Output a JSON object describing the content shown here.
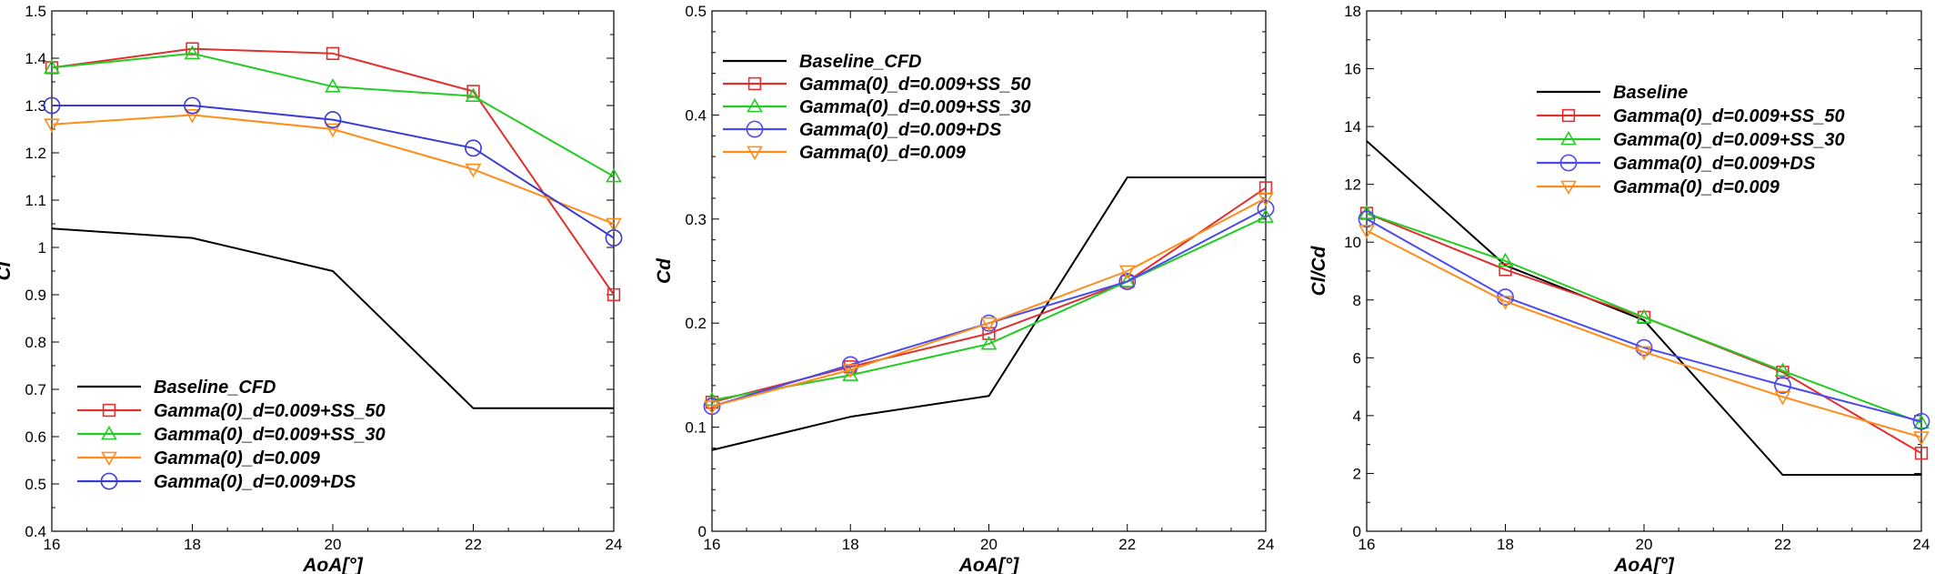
{
  "chart_data": [
    {
      "type": "line",
      "xlabel": "AoA[°]",
      "ylabel": "Cl",
      "xlim": [
        16,
        24
      ],
      "ylim": [
        0.4,
        1.5
      ],
      "xticks": [
        "16",
        "18",
        "20",
        "22",
        "24"
      ],
      "yticks": [
        "0.4",
        "0.5",
        "0.6",
        "0.7",
        "0.8",
        "0.9",
        "1",
        "1.1",
        "1.2",
        "1.3",
        "1.4",
        "1.5"
      ],
      "legend_position": "bottom-left",
      "x": [
        16,
        18,
        20,
        22,
        24
      ],
      "series": [
        {
          "name": "Baseline_CFD",
          "color": "#000000",
          "marker": "none",
          "values": [
            1.04,
            1.02,
            0.95,
            0.66,
            0.66
          ]
        },
        {
          "name": "Gamma(0)_d=0.009+SS_50",
          "color": "#e03030",
          "marker": "square",
          "values": [
            1.38,
            1.42,
            1.41,
            1.33,
            0.9
          ]
        },
        {
          "name": "Gamma(0)_d=0.009+SS_30",
          "color": "#22cc22",
          "marker": "triangle-up",
          "values": [
            1.38,
            1.41,
            1.34,
            1.32,
            1.15
          ]
        },
        {
          "name": "Gamma(0)_d=0.009",
          "color": "#ff8c1a",
          "marker": "triangle-down",
          "values": [
            1.26,
            1.28,
            1.25,
            1.165,
            1.05
          ]
        },
        {
          "name": "Gamma(0)_d=0.009+DS",
          "color": "#3a3ad6",
          "marker": "circle",
          "values": [
            1.3,
            1.3,
            1.27,
            1.21,
            1.02
          ]
        }
      ]
    },
    {
      "type": "line",
      "xlabel": "AoA[°]",
      "ylabel": "Cd",
      "xlim": [
        16,
        24
      ],
      "ylim": [
        0,
        0.5
      ],
      "xticks": [
        "16",
        "18",
        "20",
        "22",
        "24"
      ],
      "yticks": [
        "0",
        "0.1",
        "0.2",
        "0.3",
        "0.4",
        "0.5"
      ],
      "legend_position": "top-left",
      "x": [
        16,
        18,
        20,
        22,
        24
      ],
      "series": [
        {
          "name": "Baseline_CFD",
          "color": "#000000",
          "marker": "none",
          "values": [
            0.078,
            0.11,
            0.13,
            0.34,
            0.34
          ]
        },
        {
          "name": "Gamma(0)_d=0.009+SS_50",
          "color": "#e03030",
          "marker": "square",
          "values": [
            0.124,
            0.158,
            0.19,
            0.24,
            0.33
          ]
        },
        {
          "name": "Gamma(0)_d=0.009+SS_30",
          "color": "#22cc22",
          "marker": "triangle-up",
          "values": [
            0.126,
            0.15,
            0.18,
            0.24,
            0.302
          ]
        },
        {
          "name": "Gamma(0)_d=0.009+DS",
          "color": "#4a4af0",
          "marker": "circle",
          "values": [
            0.12,
            0.16,
            0.2,
            0.24,
            0.31
          ]
        },
        {
          "name": "Gamma(0)_d=0.009",
          "color": "#ff8c1a",
          "marker": "triangle-down",
          "values": [
            0.12,
            0.155,
            0.2,
            0.25,
            0.32
          ]
        }
      ]
    },
    {
      "type": "line",
      "xlabel": "AoA[°]",
      "ylabel": "Cl/Cd",
      "xlim": [
        16,
        24
      ],
      "ylim": [
        0,
        18
      ],
      "xticks": [
        "16",
        "18",
        "20",
        "22",
        "24"
      ],
      "yticks": [
        "0",
        "2",
        "4",
        "6",
        "8",
        "10",
        "12",
        "14",
        "16",
        "18"
      ],
      "legend_position": "top-right",
      "x": [
        16,
        18,
        20,
        22,
        24
      ],
      "series": [
        {
          "name": "Baseline",
          "color": "#000000",
          "marker": "none",
          "values": [
            13.5,
            9.2,
            7.3,
            1.95,
            1.95
          ]
        },
        {
          "name": "Gamma(0)_d=0.009+SS_50",
          "color": "#e03030",
          "marker": "square",
          "values": [
            11,
            9.05,
            7.4,
            5.5,
            2.7
          ]
        },
        {
          "name": "Gamma(0)_d=0.009+SS_30",
          "color": "#22cc22",
          "marker": "triangle-up",
          "values": [
            11,
            9.35,
            7.4,
            5.55,
            3.75
          ]
        },
        {
          "name": "Gamma(0)_d=0.009+DS",
          "color": "#4a4af0",
          "marker": "circle",
          "values": [
            10.8,
            8.1,
            6.35,
            5.05,
            3.8
          ]
        },
        {
          "name": "Gamma(0)_d=0.009",
          "color": "#ff8c1a",
          "marker": "triangle-down",
          "values": [
            10.4,
            7.95,
            6.2,
            4.65,
            3.25
          ]
        }
      ]
    }
  ]
}
